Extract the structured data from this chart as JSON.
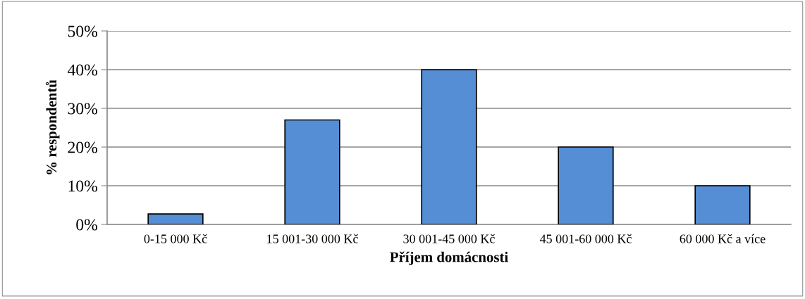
{
  "chart_data": {
    "type": "bar",
    "xlabel": "Příjem domácnosti",
    "ylabel": "% respondentů",
    "categories": [
      "0-15 000 Kč",
      "15 001-30 000 Kč",
      "30 001-45 000 Kč",
      "45 001-60 000 Kč",
      "60 000 Kč a více"
    ],
    "values": [
      2.7,
      27,
      40,
      20,
      10
    ],
    "color": "#558ed5",
    "ylim": [
      0,
      50
    ],
    "yticks": [
      {
        "value": 0,
        "label": "0%"
      },
      {
        "value": 10,
        "label": "10%"
      },
      {
        "value": 20,
        "label": "20%"
      },
      {
        "value": 30,
        "label": "30%"
      },
      {
        "value": 40,
        "label": "40%"
      },
      {
        "value": 50,
        "label": "50%"
      }
    ],
    "grid": "y",
    "legend": false
  }
}
